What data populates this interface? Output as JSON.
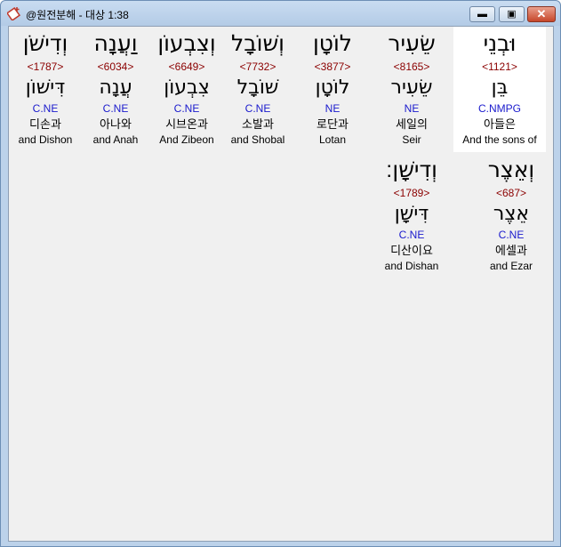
{
  "window": {
    "title": "@원전분해 - 대상 1:38",
    "icon": "bible-book-icon",
    "minimize": "minimize-icon",
    "maximize": "maximize-icon",
    "close": "close-icon"
  },
  "rows": [
    {
      "words": [
        {
          "hebrew": "וּבְנֵי",
          "strong": "<1121>",
          "lemma": "בֵּן",
          "code": "C.NMPG",
          "korean": "아들은",
          "english": "And the sons of",
          "selected": true
        },
        {
          "hebrew": "שֵׂעִיר",
          "strong": "<8165>",
          "lemma": "שֵׂעִיר",
          "code": "NE",
          "korean": "세일의",
          "english": "Seir"
        },
        {
          "hebrew": "לוֹטָן",
          "strong": "<3877>",
          "lemma": "לוֹטָן",
          "code": "NE",
          "korean": "로단과",
          "english": "Lotan"
        },
        {
          "hebrew": "וְשׁוֹבָל",
          "strong": "<7732>",
          "lemma": "שׁוֹבָל",
          "code": "C.NE",
          "korean": "소발과",
          "english": "and Shobal"
        },
        {
          "hebrew": "וְצִבְעוֹן",
          "strong": "<6649>",
          "lemma": "צִבְעוֹן",
          "code": "C.NE",
          "korean": "시브온과",
          "english": "And Zibeon"
        },
        {
          "hebrew": "וַעֲנָה",
          "strong": "<6034>",
          "lemma": "עֲנָה",
          "code": "C.NE",
          "korean": "아나와",
          "english": "and Anah"
        },
        {
          "hebrew": "וְדִישֹׁן",
          "strong": "<1787>",
          "lemma": "דִּישׁוֹן",
          "code": "C.NE",
          "korean": "디손과",
          "english": "and Dishon"
        }
      ]
    },
    {
      "words": [
        {
          "hebrew": "וְאֵצֶר",
          "strong": "<687>",
          "lemma": "אֵצֶר",
          "code": "C.NE",
          "korean": "에셀과",
          "english": "and Ezar"
        },
        {
          "hebrew": "וְדִישָׁן׃",
          "strong": "<1789>",
          "lemma": "דִּישָׁן",
          "code": "C.NE",
          "korean": "디산이요",
          "english": "and Dishan"
        }
      ]
    }
  ],
  "colors": {
    "strong": "#8b0000",
    "code": "#1a1acd",
    "selected_bg": "#ffffff",
    "client_bg": "#f0f0f0"
  }
}
